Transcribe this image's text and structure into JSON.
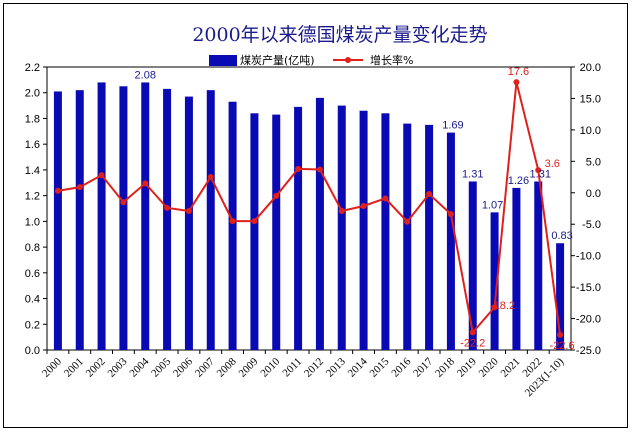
{
  "chart_data": {
    "type": "bar+line",
    "title": "2000年以来德国煤炭产量变化走势",
    "categories": [
      "2000",
      "2001",
      "2002",
      "2003",
      "2004",
      "2005",
      "2006",
      "2007",
      "2008",
      "2009",
      "2010",
      "2011",
      "2012",
      "2013",
      "2014",
      "2015",
      "2016",
      "2017",
      "2018",
      "2019",
      "2020",
      "2021",
      "2022",
      "2023(1-10)"
    ],
    "series": [
      {
        "name": "煤炭产量(亿吨)",
        "type": "bar",
        "axis": "left",
        "color": "#0a0ab4",
        "values": [
          2.01,
          2.02,
          2.08,
          2.05,
          2.08,
          2.03,
          1.97,
          2.02,
          1.93,
          1.84,
          1.83,
          1.89,
          1.96,
          1.9,
          1.86,
          1.84,
          1.76,
          1.75,
          1.69,
          1.31,
          1.07,
          1.26,
          1.31,
          0.83
        ],
        "labels": {
          "4": "2.08",
          "18": "1.69",
          "19": "1.31",
          "20": "1.07",
          "21": "1.26",
          "22": "1.31",
          "23": "0.83"
        }
      },
      {
        "name": "增长率%",
        "type": "line",
        "axis": "right",
        "color": "#e0201a",
        "values": [
          0.3,
          0.9,
          2.8,
          -1.5,
          1.5,
          -2.4,
          -2.9,
          2.5,
          -4.5,
          -4.5,
          -0.5,
          3.8,
          3.7,
          -2.9,
          -2.1,
          -0.9,
          -4.6,
          -0.2,
          -3.4,
          -22.2,
          -18.2,
          17.6,
          3.6,
          -22.6
        ],
        "labels": {
          "19": "-22.2",
          "20": "-18.2",
          "21": "17.6",
          "22": "3.6",
          "23": "-22.6"
        }
      }
    ],
    "y_left": {
      "min": 0.0,
      "max": 2.2,
      "ticks": [
        "0.0",
        "0.2",
        "0.4",
        "0.6",
        "0.8",
        "1.0",
        "1.2",
        "1.4",
        "1.6",
        "1.8",
        "2.0",
        "2.2"
      ]
    },
    "y_right": {
      "min": -25.0,
      "max": 20.0,
      "ticks": [
        "-25.0",
        "-20.0",
        "-15.0",
        "-10.0",
        "-5.0",
        "0.0",
        "5.0",
        "10.0",
        "15.0",
        "20.0"
      ]
    },
    "legend_position": "top",
    "grid": false
  }
}
